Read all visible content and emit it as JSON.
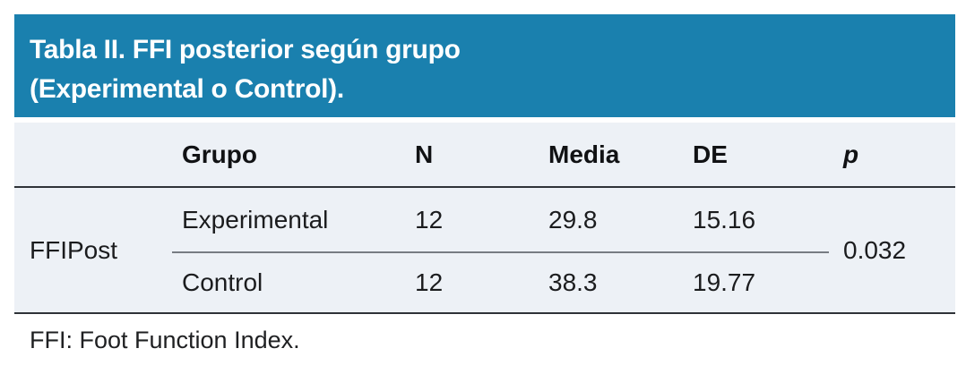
{
  "header": {
    "title_line1": "Tabla II. FFI posterior según grupo",
    "title_line2": "(Experimental o Control)."
  },
  "table": {
    "column_headers": [
      "Grupo",
      "N",
      "Media",
      "DE",
      "p"
    ],
    "row_group_label": "FFIPost",
    "rows": [
      {
        "grupo": "Experimental",
        "n": "12",
        "media": "29.8",
        "de": "15.16"
      },
      {
        "grupo": "Control",
        "n": "12",
        "media": "38.3",
        "de": "19.77"
      }
    ],
    "p_value": "0.032"
  },
  "footnote": {
    "text": "FFI: Foot Function Index."
  },
  "colors": {
    "title_background": "#1a80ae",
    "title_text": "#ffffff",
    "table_background": "#edf1f6",
    "rule_dark": "#2f3338",
    "rule_light": "#777c83"
  }
}
